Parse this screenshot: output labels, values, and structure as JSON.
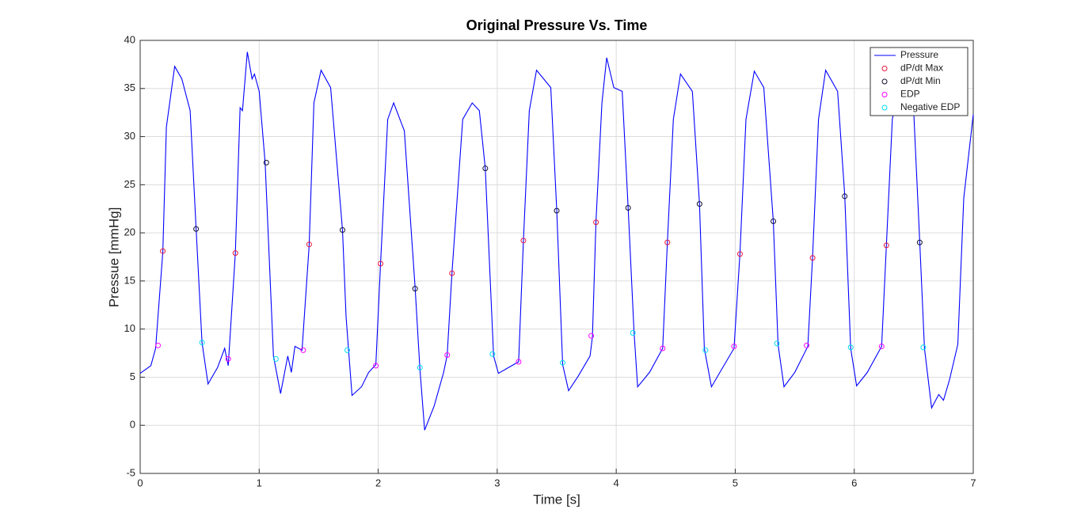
{
  "chart_data": {
    "type": "line",
    "title": "Original Pressure Vs. Time",
    "x_label": "Time [s]",
    "y_label": "Pressue [mmHg]",
    "xlim": [
      0,
      7
    ],
    "xticks": [
      0,
      1,
      2,
      3,
      4,
      5,
      6,
      7
    ],
    "ylim": [
      -5,
      40
    ],
    "yticks": [
      -5,
      0,
      5,
      10,
      15,
      20,
      25,
      30,
      35,
      40
    ],
    "grid": true,
    "legend": "upper right",
    "series": [
      {
        "name": "Pressure",
        "color": "#0000ff",
        "style": "line",
        "x": [
          0,
          0.09,
          0.13,
          0.19,
          0.22,
          0.29,
          0.35,
          0.42,
          0.47,
          0.52,
          0.57,
          0.65,
          0.71,
          0.74,
          0.8,
          0.84,
          0.86,
          0.9,
          0.94,
          0.96,
          1.0,
          1.05,
          1.12,
          1.18,
          1.24,
          1.27,
          1.3,
          1.36,
          1.42,
          1.46,
          1.52,
          1.6,
          1.7,
          1.73,
          1.78,
          1.86,
          1.92,
          1.98,
          2.02,
          2.08,
          2.13,
          2.22,
          2.31,
          2.35,
          2.39,
          2.47,
          2.55,
          2.58,
          2.62,
          2.71,
          2.79,
          2.85,
          2.9,
          2.97,
          3.01,
          3.08,
          3.18,
          3.22,
          3.27,
          3.33,
          3.45,
          3.5,
          3.55,
          3.6,
          3.68,
          3.78,
          3.8,
          3.83,
          3.88,
          3.92,
          3.98,
          4.05,
          4.1,
          4.15,
          4.18,
          4.28,
          4.39,
          4.43,
          4.48,
          4.54,
          4.64,
          4.7,
          4.74,
          4.8,
          4.89,
          4.99,
          5.04,
          5.09,
          5.16,
          5.24,
          5.32,
          5.36,
          5.41,
          5.5,
          5.61,
          5.65,
          5.7,
          5.76,
          5.86,
          5.92,
          5.97,
          6.02,
          6.11,
          6.23,
          6.27,
          6.32,
          6.39,
          6.49,
          6.55,
          6.59,
          6.65,
          6.71,
          6.75,
          6.8,
          6.87,
          6.92,
          7.0
        ],
        "values": [
          5.4,
          6.2,
          8.0,
          18,
          31,
          37.3,
          36,
          32.7,
          20.5,
          8.6,
          4.3,
          6,
          8,
          6.2,
          17.9,
          33,
          32.7,
          38.8,
          36,
          36.5,
          34.7,
          27.3,
          7.2,
          3.3,
          7.2,
          5.5,
          8.2,
          7.8,
          18.7,
          33.5,
          36.9,
          35.1,
          20.3,
          11.3,
          3.1,
          4,
          5.5,
          6.3,
          16.9,
          31.8,
          33.5,
          30.6,
          14.3,
          5.9,
          -0.5,
          2,
          5.5,
          7.3,
          15.8,
          31.8,
          33.5,
          32.7,
          26.7,
          7.2,
          5.4,
          5.9,
          6.6,
          19.1,
          32.7,
          36.9,
          35.1,
          22.4,
          6.3,
          3.6,
          5.1,
          7.2,
          9.2,
          21.2,
          33.5,
          38.2,
          35.1,
          34.7,
          22.6,
          9.6,
          4.0,
          5.5,
          8,
          19.1,
          31.8,
          36.5,
          34.7,
          23.0,
          8,
          4,
          5.9,
          8,
          17.9,
          31.8,
          36.8,
          35.1,
          21.2,
          8.4,
          4,
          5.5,
          8.2,
          17.5,
          31.8,
          36.9,
          34.7,
          23.9,
          8,
          4.1,
          5.5,
          8.2,
          18.7,
          31.8,
          36.4,
          35.1,
          19.1,
          8,
          1.8,
          3.2,
          2.6,
          4.7,
          8.4,
          23.6,
          32.3
        ]
      },
      {
        "name": "dP/dt Max",
        "color": "#e8173c",
        "style": "circle",
        "x": [
          0.19,
          0.8,
          1.42,
          2.02,
          2.62,
          3.22,
          3.83,
          4.43,
          5.04,
          5.65,
          6.27
        ],
        "values": [
          18.1,
          17.9,
          18.8,
          16.8,
          15.8,
          19.2,
          21.1,
          19.0,
          17.8,
          17.4,
          18.7
        ]
      },
      {
        "name": "dP/dt Min",
        "color": "#101030",
        "style": "circle",
        "x": [
          0.47,
          1.06,
          1.7,
          2.31,
          2.9,
          3.5,
          4.1,
          4.7,
          5.32,
          5.92,
          6.55
        ],
        "values": [
          20.4,
          27.3,
          20.3,
          14.2,
          26.7,
          22.3,
          22.6,
          23.0,
          21.2,
          23.8,
          19.0
        ]
      },
      {
        "name": "EDP",
        "color": "#ff00ff",
        "style": "circle",
        "x": [
          0.15,
          0.74,
          1.37,
          1.98,
          2.58,
          3.18,
          3.79,
          4.39,
          4.99,
          5.6,
          6.23
        ],
        "values": [
          8.3,
          6.9,
          7.8,
          6.2,
          7.3,
          6.6,
          9.3,
          8.0,
          8.2,
          8.3,
          8.2
        ]
      },
      {
        "name": "Negative EDP",
        "color": "#00e0f0",
        "style": "circle",
        "x": [
          0.52,
          1.14,
          1.74,
          2.35,
          2.96,
          3.55,
          4.14,
          4.75,
          5.35,
          5.97,
          6.58
        ],
        "values": [
          8.6,
          6.9,
          7.8,
          6.0,
          7.4,
          6.5,
          9.6,
          7.8,
          8.5,
          8.1,
          8.1
        ]
      }
    ]
  }
}
